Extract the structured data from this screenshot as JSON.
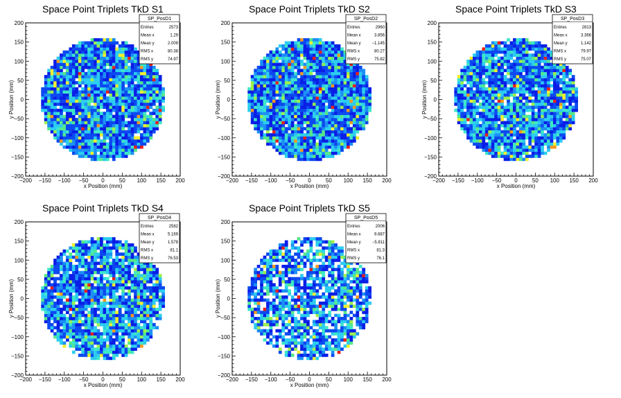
{
  "chart_data": [
    {
      "type": "heatmap",
      "title": "Space Point Triplets TkD S1",
      "xlabel": "x Position (mm)",
      "ylabel": "y Position (mm)",
      "xlim": [
        -200,
        200
      ],
      "ylim": [
        -200,
        200
      ],
      "xticks": [
        "−200",
        "−150",
        "−100",
        "−50",
        "0",
        "50",
        "100",
        "150",
        "200"
      ],
      "yticks": [
        "−200",
        "−150",
        "−100",
        "−50",
        "0",
        "50",
        "100",
        "150",
        "200"
      ],
      "stats": {
        "name": "SP_PosD1",
        "rows": [
          {
            "label": "Entries",
            "value": "2573"
          },
          {
            "label": "Mean x",
            "value": "1.29"
          },
          {
            "label": "Mean y",
            "value": "2.009"
          },
          {
            "label": "RMS x",
            "value": "80.38"
          },
          {
            "label": "RMS y",
            "value": "74.97"
          }
        ]
      },
      "entries": 2573,
      "mean_x": 1.29,
      "mean_y": 2.009,
      "rms_x": 80.38,
      "rms_y": 74.97,
      "radius": 160,
      "density": 0.97,
      "bin_size": 8
    },
    {
      "type": "heatmap",
      "title": "Space Point Triplets TkD S2",
      "xlabel": "x Position (mm)",
      "ylabel": "y Position (mm)",
      "xlim": [
        -200,
        200
      ],
      "ylim": [
        -200,
        200
      ],
      "xticks": [
        "−200",
        "−150",
        "−100",
        "−50",
        "0",
        "50",
        "100",
        "150",
        "200"
      ],
      "yticks": [
        "−200",
        "−150",
        "−100",
        "−50",
        "0",
        "50",
        "100",
        "150",
        "200"
      ],
      "stats": {
        "name": "SP_PosD2",
        "rows": [
          {
            "label": "Entries",
            "value": "2960"
          },
          {
            "label": "Mean x",
            "value": "3.856"
          },
          {
            "label": "Mean y",
            "value": "−1.145"
          },
          {
            "label": "RMS x",
            "value": "80.27"
          },
          {
            "label": "RMS y",
            "value": "75.82"
          }
        ]
      },
      "entries": 2960,
      "mean_x": 3.856,
      "mean_y": -1.145,
      "rms_x": 80.27,
      "rms_y": 75.82,
      "radius": 160,
      "density": 0.97,
      "bin_size": 8
    },
    {
      "type": "heatmap",
      "title": "Space Point Triplets TkD S3",
      "xlabel": "x Position (mm)",
      "ylabel": "y Position (mm)",
      "xlim": [
        -200,
        200
      ],
      "ylim": [
        -200,
        200
      ],
      "xticks": [
        "−200",
        "−150",
        "−100",
        "−50",
        "0",
        "50",
        "100",
        "150",
        "200"
      ],
      "yticks": [
        "−200",
        "−150",
        "−100",
        "−50",
        "0",
        "50",
        "100",
        "150",
        "200"
      ],
      "stats": {
        "name": "SP_PosD3",
        "rows": [
          {
            "label": "Entries",
            "value": "2813"
          },
          {
            "label": "Mean x",
            "value": "3.366"
          },
          {
            "label": "Mean y",
            "value": "1.142"
          },
          {
            "label": "RMS x",
            "value": "79.97"
          },
          {
            "label": "RMS y",
            "value": "75.07"
          }
        ]
      },
      "entries": 2813,
      "mean_x": 3.366,
      "mean_y": 1.142,
      "rms_x": 79.97,
      "rms_y": 75.07,
      "radius": 160,
      "density": 0.93,
      "bin_size": 8
    },
    {
      "type": "heatmap",
      "title": "Space Point Triplets TkD S4",
      "xlabel": "x Position (mm)",
      "ylabel": "y Position (mm)",
      "xlim": [
        -200,
        200
      ],
      "ylim": [
        -200,
        200
      ],
      "xticks": [
        "−200",
        "−150",
        "−100",
        "−50",
        "0",
        "50",
        "100",
        "150",
        "200"
      ],
      "yticks": [
        "−200",
        "−150",
        "−100",
        "−50",
        "0",
        "50",
        "100",
        "150",
        "200"
      ],
      "stats": {
        "name": "SP_PosD4",
        "rows": [
          {
            "label": "Entries",
            "value": "2582"
          },
          {
            "label": "Mean x",
            "value": "5.169"
          },
          {
            "label": "Mean y",
            "value": "1.578"
          },
          {
            "label": "RMS x",
            "value": "81.1"
          },
          {
            "label": "RMS y",
            "value": "76.53"
          }
        ]
      },
      "entries": 2582,
      "mean_x": 5.169,
      "mean_y": 1.578,
      "rms_x": 81.1,
      "rms_y": 76.53,
      "radius": 160,
      "density": 0.88,
      "bin_size": 8
    },
    {
      "type": "heatmap",
      "title": "Space Point Triplets TkD S5",
      "xlabel": "x Position (mm)",
      "ylabel": "y Position (mm)",
      "xlim": [
        -200,
        200
      ],
      "ylim": [
        -200,
        200
      ],
      "xticks": [
        "−200",
        "−150",
        "−100",
        "−50",
        "0",
        "50",
        "100",
        "150",
        "200"
      ],
      "yticks": [
        "−200",
        "−150",
        "−100",
        "−50",
        "0",
        "50",
        "100",
        "150",
        "200"
      ],
      "stats": {
        "name": "SP_PosD5",
        "rows": [
          {
            "label": "Entries",
            "value": "2006"
          },
          {
            "label": "Mean x",
            "value": "9.687"
          },
          {
            "label": "Mean y",
            "value": "−5.811"
          },
          {
            "label": "RMS x",
            "value": "81.3"
          },
          {
            "label": "RMS y",
            "value": "76.1"
          }
        ]
      },
      "entries": 2006,
      "mean_x": 9.687,
      "mean_y": -5.811,
      "rms_x": 81.3,
      "rms_y": 76.1,
      "radius": 160,
      "density": 0.72,
      "bin_size": 8
    }
  ],
  "colors": {
    "palette": [
      "#0a1ee6",
      "#0c49f0",
      "#1c8ff5",
      "#2ccdf0",
      "#3de8c8",
      "#55e88a",
      "#9cf04c",
      "#f2ee2e",
      "#f59a1e",
      "#e8201a"
    ],
    "axis": "#000000",
    "background": "#ffffff"
  }
}
